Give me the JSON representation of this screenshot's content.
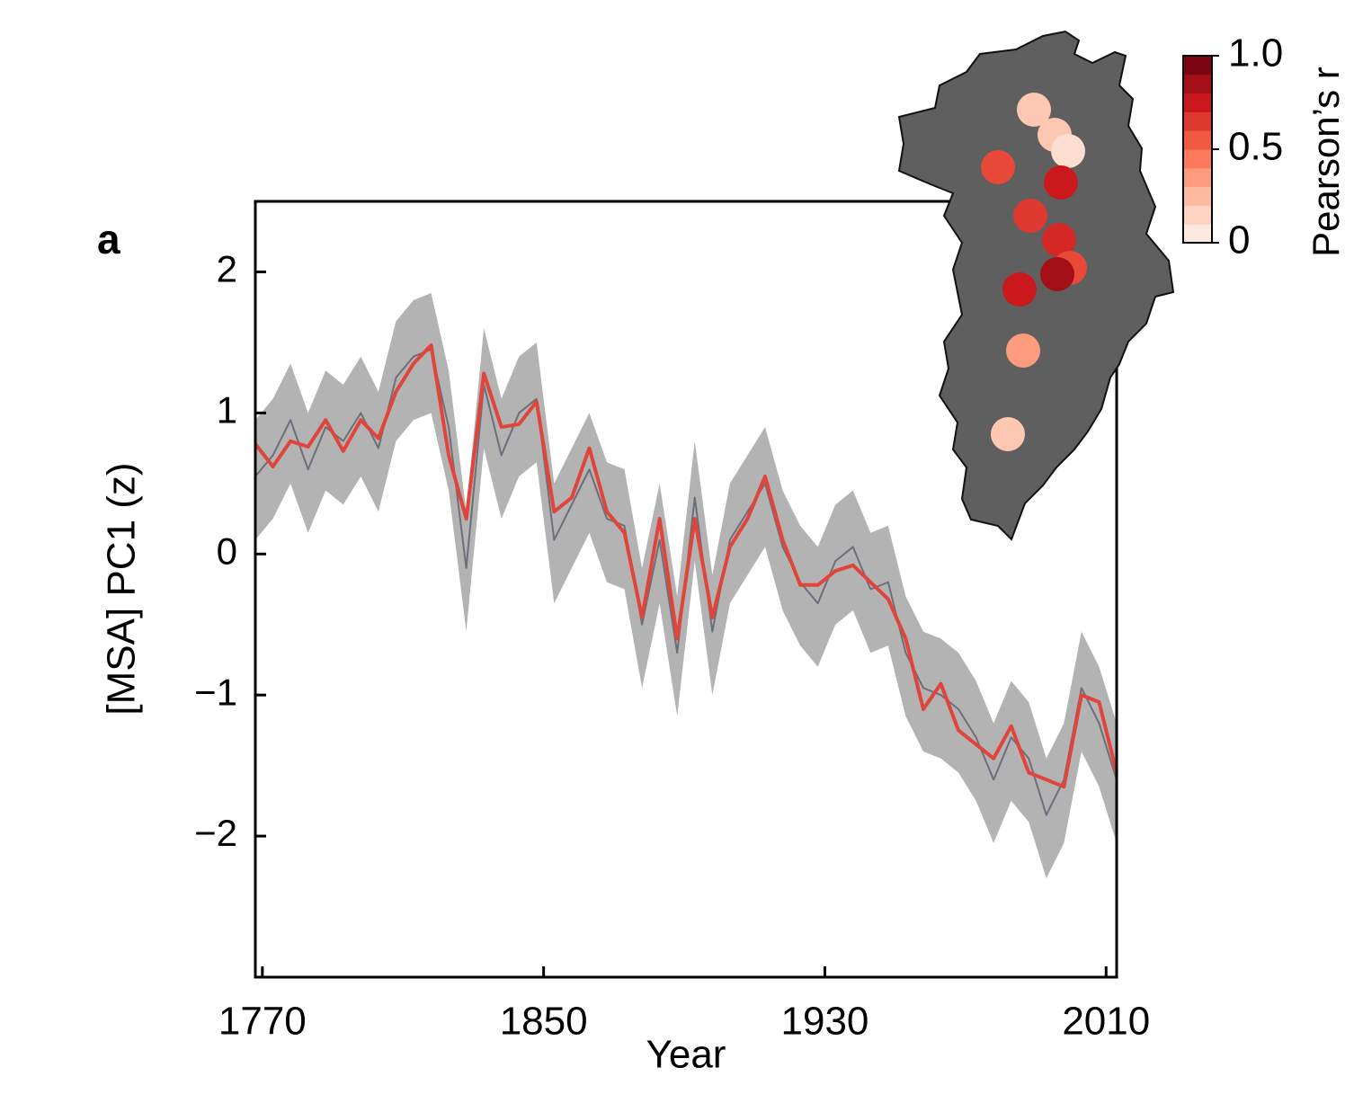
{
  "chart_data": {
    "type": "line",
    "panel_label": "a",
    "x_label": "Year",
    "y_label": "[MSA] PC1 (z)",
    "xlim": [
      1768,
      2013
    ],
    "ylim": [
      -3.0,
      2.5
    ],
    "xticks": [
      1770,
      1850,
      1930,
      2010
    ],
    "yticks": [
      {
        "value": -2,
        "label": "−2"
      },
      {
        "value": -1,
        "label": "−1"
      },
      0,
      1,
      2
    ],
    "x": [
      1768,
      1773,
      1778,
      1783,
      1788,
      1793,
      1798,
      1803,
      1808,
      1813,
      1818,
      1823,
      1828,
      1833,
      1838,
      1843,
      1848,
      1853,
      1858,
      1863,
      1868,
      1873,
      1878,
      1883,
      1888,
      1893,
      1898,
      1903,
      1908,
      1913,
      1918,
      1923,
      1928,
      1933,
      1938,
      1943,
      1948,
      1953,
      1958,
      1963,
      1968,
      1973,
      1978,
      1983,
      1988,
      1993,
      1998,
      2003,
      2008,
      2013
    ],
    "band": {
      "color": "#b3b3b3",
      "upper": [
        0.95,
        1.1,
        1.35,
        1.0,
        1.3,
        1.2,
        1.4,
        1.15,
        1.65,
        1.8,
        1.85,
        1.3,
        0.3,
        1.6,
        1.1,
        1.4,
        1.5,
        0.5,
        0.75,
        1.0,
        0.65,
        0.6,
        -0.1,
        0.5,
        -0.3,
        0.8,
        -0.15,
        0.5,
        0.7,
        0.9,
        0.45,
        0.2,
        0.05,
        0.35,
        0.45,
        0.15,
        0.2,
        -0.3,
        -0.55,
        -0.6,
        -0.7,
        -0.9,
        -1.2,
        -0.9,
        -1.05,
        -1.45,
        -1.2,
        -0.55,
        -0.8,
        -1.2
      ],
      "lower": [
        0.1,
        0.25,
        0.5,
        0.15,
        0.45,
        0.35,
        0.55,
        0.3,
        0.8,
        0.95,
        1.0,
        0.45,
        -0.55,
        0.75,
        0.25,
        0.55,
        0.65,
        -0.35,
        -0.1,
        0.15,
        -0.2,
        -0.25,
        -0.95,
        -0.35,
        -1.15,
        -0.05,
        -1.0,
        -0.35,
        -0.15,
        0.05,
        -0.4,
        -0.65,
        -0.8,
        -0.5,
        -0.4,
        -0.7,
        -0.65,
        -1.15,
        -1.4,
        -1.45,
        -1.55,
        -1.75,
        -2.05,
        -1.75,
        -1.9,
        -2.3,
        -2.05,
        -1.4,
        -1.65,
        -2.05
      ]
    },
    "series": [
      {
        "color": "#6e6e7a",
        "values": [
          0.55,
          0.7,
          0.95,
          0.6,
          0.9,
          0.8,
          1.0,
          0.75,
          1.25,
          1.4,
          1.45,
          0.9,
          -0.1,
          1.2,
          0.7,
          1.0,
          1.1,
          0.1,
          0.35,
          0.6,
          0.25,
          0.2,
          -0.5,
          0.1,
          -0.7,
          0.4,
          -0.55,
          0.1,
          0.3,
          0.5,
          0.05,
          -0.2,
          -0.35,
          -0.05,
          0.05,
          -0.25,
          -0.2,
          -0.7,
          -0.95,
          -1.0,
          -1.1,
          -1.3,
          -1.6,
          -1.3,
          -1.45,
          -1.85,
          -1.6,
          -0.95,
          -1.2,
          -1.6
        ]
      },
      {
        "color": "#e0443a",
        "values": [
          0.78,
          0.62,
          0.8,
          0.76,
          0.95,
          0.73,
          0.95,
          0.82,
          1.15,
          1.35,
          1.48,
          0.7,
          0.25,
          1.28,
          0.9,
          0.92,
          1.08,
          0.3,
          0.4,
          0.75,
          0.3,
          0.15,
          -0.45,
          0.25,
          -0.6,
          0.25,
          -0.45,
          0.05,
          0.25,
          0.55,
          0.1,
          -0.22,
          -0.22,
          -0.12,
          -0.08,
          -0.2,
          -0.32,
          -0.6,
          -1.1,
          -0.92,
          -1.25,
          -1.35,
          -1.45,
          -1.22,
          -1.55,
          -1.6,
          -1.65,
          -1.0,
          -1.05,
          -1.55
        ]
      }
    ],
    "inset": {
      "colorbar_label": "Pearson’s r",
      "colorbar_lim": [
        0,
        1
      ],
      "colorbar_ticks": [
        0,
        0.5,
        {
          "value": 1,
          "label": "1.0"
        }
      ],
      "r": [
        0.2,
        0.2,
        0.1,
        0.6,
        0.75,
        0.65,
        0.7,
        0.6,
        0.85,
        0.75,
        0.35,
        0.2
      ]
    }
  }
}
